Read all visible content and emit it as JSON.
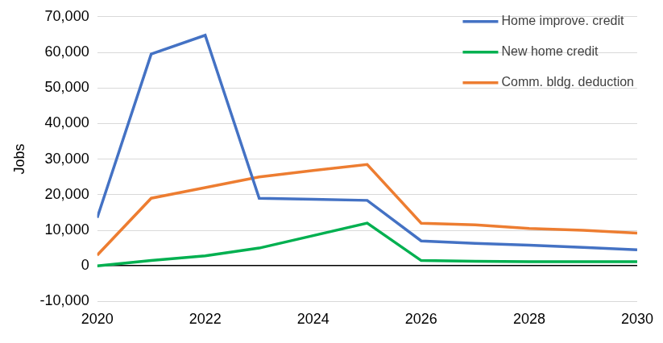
{
  "chart_data": {
    "type": "line",
    "y_label": "Jobs",
    "x": [
      2020,
      2021,
      2022,
      2023,
      2024,
      2025,
      2026,
      2027,
      2028,
      2029,
      2030
    ],
    "series": [
      {
        "name": "Home improve. credit",
        "color": "#4472c4",
        "values": [
          13500,
          59500,
          64800,
          19000,
          18700,
          18400,
          7000,
          6300,
          5800,
          5200,
          4500
        ]
      },
      {
        "name": "New home credit",
        "color": "#00b050",
        "values": [
          0,
          1500,
          2800,
          5000,
          8500,
          12000,
          1500,
          1300,
          1200,
          1200,
          1200
        ]
      },
      {
        "name": "Comm. bldg. deduction",
        "color": "#ed7d31",
        "values": [
          3000,
          19000,
          22000,
          25000,
          26800,
          28500,
          12000,
          11500,
          10500,
          10000,
          9200
        ]
      }
    ],
    "xlim": [
      2020,
      2030
    ],
    "xticks": [
      2020,
      2022,
      2024,
      2026,
      2028,
      2030
    ],
    "ylim": [
      -10000,
      70000
    ],
    "yticks": [
      {
        "value": -10000,
        "label": "-10,000"
      },
      0,
      {
        "value": 10000,
        "label": "10,000"
      },
      {
        "value": 20000,
        "label": "20,000"
      },
      {
        "value": 30000,
        "label": "30,000"
      },
      {
        "value": 40000,
        "label": "40,000"
      },
      {
        "value": 50000,
        "label": "50,000"
      },
      {
        "value": 60000,
        "label": "60,000"
      },
      {
        "value": 70000,
        "label": "70,000"
      }
    ],
    "grid": true,
    "legend": "upper right"
  }
}
